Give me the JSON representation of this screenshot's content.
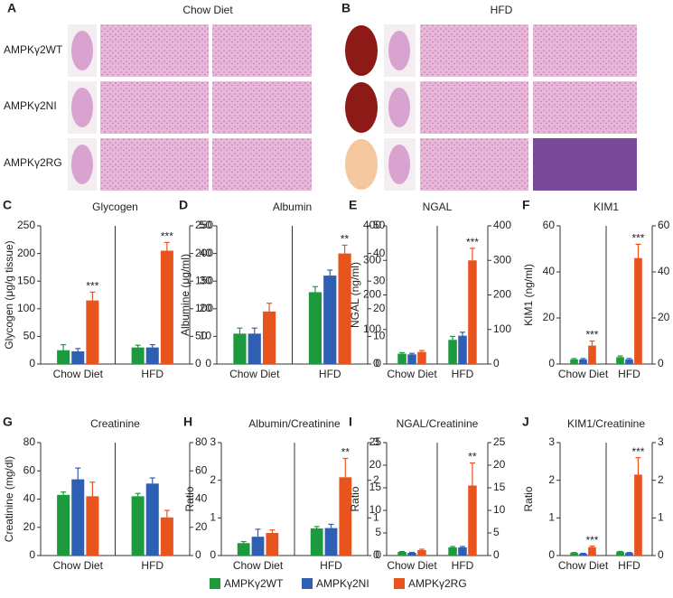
{
  "panels": {
    "a": {
      "letter": "A",
      "title": "Chow Diet"
    },
    "b": {
      "letter": "B",
      "title": "HFD"
    },
    "rows": [
      "AMPKγ2WT",
      "AMPKγ2NI",
      "AMPKγ2RG"
    ]
  },
  "legend": [
    {
      "name": "AMPKγ2WT",
      "color": "#1e9a3e"
    },
    {
      "name": "AMPKγ2NI",
      "color": "#2f5fb3"
    },
    {
      "name": "AMPKγ2RG",
      "color": "#e8541e"
    }
  ],
  "chart_data": [
    {
      "type": "bar",
      "letter": "C",
      "title": "Glycogen",
      "ylabel": "Glycogen (μg/g tissue)",
      "categories": [
        "Chow Diet",
        "HFD"
      ],
      "series": [
        {
          "values": [
            25,
            30
          ],
          "errors": [
            10,
            4
          ]
        },
        {
          "values": [
            23,
            30
          ],
          "errors": [
            5,
            5
          ]
        },
        {
          "values": [
            115,
            205
          ],
          "errors": [
            15,
            15
          ]
        }
      ],
      "ylim": [
        0,
        250
      ],
      "yticks": [
        0,
        50,
        100,
        150,
        200,
        250
      ],
      "y2lim": [
        0,
        250
      ],
      "y2ticks": [
        0,
        50,
        100,
        150,
        200,
        250
      ],
      "annotations": [
        {
          "x": 0,
          "text": "***"
        },
        {
          "x": 1,
          "text": "***"
        }
      ]
    },
    {
      "type": "bar",
      "letter": "D",
      "title": "Albumin",
      "ylabel": "Albumine (μg/ml)",
      "categories": [
        "Chow Diet",
        "HFD"
      ],
      "series": [
        {
          "values": [
            11,
            26
          ],
          "errors": [
            2,
            2
          ]
        },
        {
          "values": [
            11,
            32
          ],
          "errors": [
            2,
            2
          ]
        },
        {
          "values": [
            19,
            40
          ],
          "errors": [
            3,
            3
          ]
        }
      ],
      "ylim": [
        0,
        50
      ],
      "yticks": [
        0,
        10,
        20,
        30,
        40,
        50
      ],
      "y2lim": [
        0,
        50
      ],
      "y2ticks": [
        0,
        10,
        20,
        30,
        40,
        50
      ],
      "annotations": [
        {
          "x": 1,
          "text": "**"
        }
      ]
    },
    {
      "type": "bar",
      "letter": "E",
      "title": "NGAL",
      "ylabel": "NGAL (ng/ml)",
      "categories": [
        "Chow Diet",
        "HFD"
      ],
      "series": [
        {
          "values": [
            30,
            70
          ],
          "errors": [
            3,
            10
          ]
        },
        {
          "values": [
            28,
            82
          ],
          "errors": [
            3,
            10
          ]
        },
        {
          "values": [
            35,
            300
          ],
          "errors": [
            4,
            35
          ]
        }
      ],
      "ylim": [
        0,
        400
      ],
      "yticks": [
        0,
        100,
        200,
        300,
        400
      ],
      "y2lim": [
        0,
        400
      ],
      "y2ticks": [
        0,
        100,
        200,
        300,
        400
      ],
      "annotations": [
        {
          "x": 1,
          "text": "***"
        }
      ]
    },
    {
      "type": "bar",
      "letter": "F",
      "title": "KIM1",
      "ylabel": "KIM1 (ng/ml)",
      "categories": [
        "Chow Diet",
        "HFD"
      ],
      "series": [
        {
          "values": [
            2,
            3
          ],
          "errors": [
            0.4,
            0.5
          ]
        },
        {
          "values": [
            2,
            2
          ],
          "errors": [
            0.4,
            0.4
          ]
        },
        {
          "values": [
            8,
            46
          ],
          "errors": [
            2,
            6
          ]
        }
      ],
      "ylim": [
        0,
        60
      ],
      "yticks": [
        0,
        20,
        40,
        60
      ],
      "y2lim": [
        0,
        60
      ],
      "y2ticks": [
        0,
        20,
        40,
        60
      ],
      "annotations": [
        {
          "x": 0,
          "text": "***"
        },
        {
          "x": 1,
          "text": "***"
        }
      ]
    },
    {
      "type": "bar",
      "letter": "G",
      "title": "Creatinine",
      "ylabel": "Creatinine (mg/dl)",
      "categories": [
        "Chow Diet",
        "HFD"
      ],
      "series": [
        {
          "values": [
            43,
            42
          ],
          "errors": [
            2,
            2
          ]
        },
        {
          "values": [
            54,
            51
          ],
          "errors": [
            8,
            4
          ]
        },
        {
          "values": [
            42,
            27
          ],
          "errors": [
            10,
            5
          ]
        }
      ],
      "ylim": [
        0,
        80
      ],
      "yticks": [
        0,
        20,
        40,
        60,
        80
      ],
      "y2lim": [
        0,
        80
      ],
      "y2ticks": [
        0,
        20,
        40,
        60,
        80
      ],
      "annotations": []
    },
    {
      "type": "bar",
      "letter": "H",
      "title": "Albumin/Creatinine",
      "ylabel": "Ratio",
      "categories": [
        "Chow Diet",
        "HFD"
      ],
      "series": [
        {
          "values": [
            0.33,
            0.72
          ],
          "errors": [
            0.04,
            0.05
          ]
        },
        {
          "values": [
            0.5,
            0.73
          ],
          "errors": [
            0.2,
            0.1
          ]
        },
        {
          "values": [
            0.6,
            2.08
          ],
          "errors": [
            0.08,
            0.5
          ]
        }
      ],
      "ylim": [
        0,
        3
      ],
      "yticks": [
        0,
        1,
        2,
        3
      ],
      "y2lim": [
        0,
        3
      ],
      "y2ticks": [
        0,
        1,
        2,
        3
      ],
      "annotations": [
        {
          "x": 1,
          "text": "**"
        }
      ]
    },
    {
      "type": "bar",
      "letter": "I",
      "title": "NGAL/Creatinine",
      "ylabel": "Ratio",
      "categories": [
        "Chow Diet",
        "HFD"
      ],
      "series": [
        {
          "values": [
            0.8,
            1.8
          ],
          "errors": [
            0.1,
            0.2
          ]
        },
        {
          "values": [
            0.6,
            1.8
          ],
          "errors": [
            0.1,
            0.2
          ]
        },
        {
          "values": [
            1.2,
            15.5
          ],
          "errors": [
            0.2,
            5
          ]
        }
      ],
      "ylim": [
        0,
        25
      ],
      "yticks": [
        0,
        5,
        10,
        15,
        20,
        25
      ],
      "y2lim": [
        0,
        25
      ],
      "y2ticks": [
        0,
        5,
        10,
        15,
        20,
        25
      ],
      "annotations": [
        {
          "x": 1,
          "text": "**"
        }
      ]
    },
    {
      "type": "bar",
      "letter": "J",
      "title": "KIM1/Creatinine",
      "ylabel": "Ratio",
      "categories": [
        "Chow Diet",
        "HFD"
      ],
      "series": [
        {
          "values": [
            0.07,
            0.1
          ],
          "errors": [
            0.01,
            0.01
          ]
        },
        {
          "values": [
            0.05,
            0.07
          ],
          "errors": [
            0.01,
            0.01
          ]
        },
        {
          "values": [
            0.22,
            2.15
          ],
          "errors": [
            0.03,
            0.45
          ]
        }
      ],
      "ylim": [
        0,
        3
      ],
      "yticks": [
        0,
        1,
        2,
        3
      ],
      "y2lim": [
        0,
        3
      ],
      "y2ticks": [
        0,
        1,
        2,
        3
      ],
      "annotations": [
        {
          "x": 0,
          "text": "***"
        },
        {
          "x": 1,
          "text": "***"
        }
      ]
    }
  ]
}
